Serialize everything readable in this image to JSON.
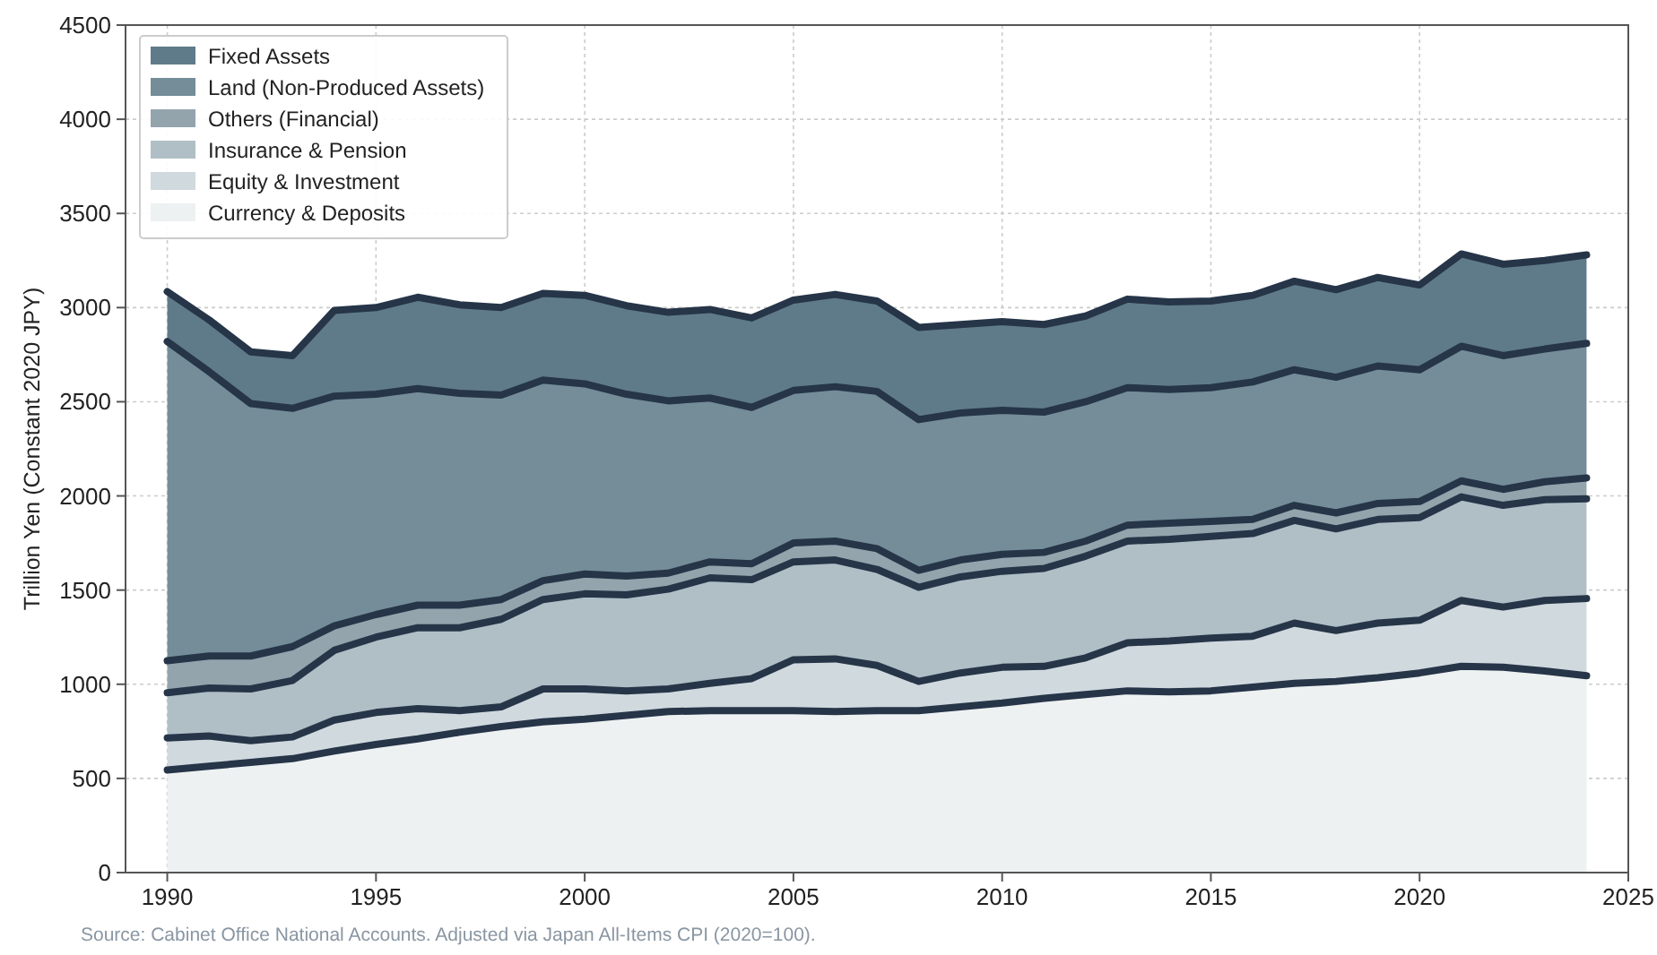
{
  "chart_data": {
    "type": "area",
    "stacked": true,
    "ylabel": "Trillion Yen (Constant 2020 JPY)",
    "x": [
      1990,
      1991,
      1992,
      1993,
      1994,
      1995,
      1996,
      1997,
      1998,
      1999,
      2000,
      2001,
      2002,
      2003,
      2004,
      2005,
      2006,
      2007,
      2008,
      2009,
      2010,
      2011,
      2012,
      2013,
      2014,
      2015,
      2016,
      2017,
      2018,
      2019,
      2020,
      2021,
      2022,
      2023,
      2024
    ],
    "xlim": [
      1989,
      2025
    ],
    "xticks": [
      1990,
      1995,
      2000,
      2005,
      2010,
      2015,
      2020,
      2025
    ],
    "ylim": [
      0,
      4500
    ],
    "yticks": [
      0,
      500,
      1000,
      1500,
      2000,
      2500,
      3000,
      3500,
      4000,
      4500
    ],
    "grid": true,
    "legend": "top left",
    "line_style": "solid",
    "annotations": [
      "Source: Cabinet Office National Accounts. Adjusted via Japan All-Items CPI (2020=100)."
    ],
    "series": [
      {
        "name": "Currency & Deposits",
        "color": "#eef1f2",
        "values": [
          545,
          565,
          585,
          605,
          645,
          680,
          710,
          745,
          775,
          800,
          815,
          835,
          855,
          860,
          860,
          860,
          855,
          860,
          860,
          880,
          900,
          925,
          945,
          965,
          960,
          965,
          985,
          1005,
          1015,
          1035,
          1060,
          1095,
          1090,
          1070,
          1045
        ]
      },
      {
        "name": "Equity & Investment",
        "color": "#d0d9de",
        "values": [
          170,
          160,
          115,
          115,
          165,
          170,
          160,
          115,
          105,
          175,
          160,
          130,
          120,
          145,
          170,
          270,
          280,
          240,
          155,
          180,
          190,
          170,
          195,
          255,
          270,
          280,
          270,
          320,
          270,
          290,
          280,
          350,
          320,
          375,
          410
        ]
      },
      {
        "name": "Insurance & Pension",
        "color": "#b0bfc6",
        "values": [
          240,
          255,
          275,
          300,
          370,
          400,
          430,
          440,
          465,
          475,
          505,
          510,
          530,
          560,
          525,
          520,
          525,
          510,
          500,
          510,
          510,
          520,
          540,
          540,
          540,
          540,
          545,
          545,
          540,
          550,
          545,
          550,
          540,
          535,
          530
        ]
      },
      {
        "name": "Others (Financial)",
        "color": "#93a4ad",
        "values": [
          170,
          170,
          175,
          180,
          130,
          120,
          120,
          120,
          105,
          100,
          105,
          100,
          85,
          85,
          85,
          100,
          100,
          110,
          90,
          90,
          90,
          85,
          80,
          85,
          85,
          80,
          75,
          80,
          85,
          85,
          85,
          85,
          85,
          95,
          110
        ]
      },
      {
        "name": "Land (Non-Produced Assets)",
        "color": "#748d99",
        "values": [
          1695,
          1510,
          1340,
          1265,
          1220,
          1170,
          1150,
          1125,
          1085,
          1065,
          1010,
          965,
          915,
          870,
          830,
          810,
          820,
          835,
          800,
          780,
          765,
          745,
          740,
          730,
          710,
          710,
          730,
          720,
          720,
          730,
          700,
          715,
          710,
          705,
          715
        ]
      },
      {
        "name": "Fixed Assets",
        "color": "#5f7b89",
        "values": [
          265,
          275,
          275,
          280,
          455,
          460,
          485,
          470,
          465,
          460,
          470,
          470,
          470,
          470,
          475,
          480,
          490,
          480,
          490,
          470,
          470,
          465,
          455,
          470,
          465,
          460,
          460,
          470,
          465,
          470,
          450,
          490,
          485,
          470,
          470
        ]
      }
    ]
  }
}
